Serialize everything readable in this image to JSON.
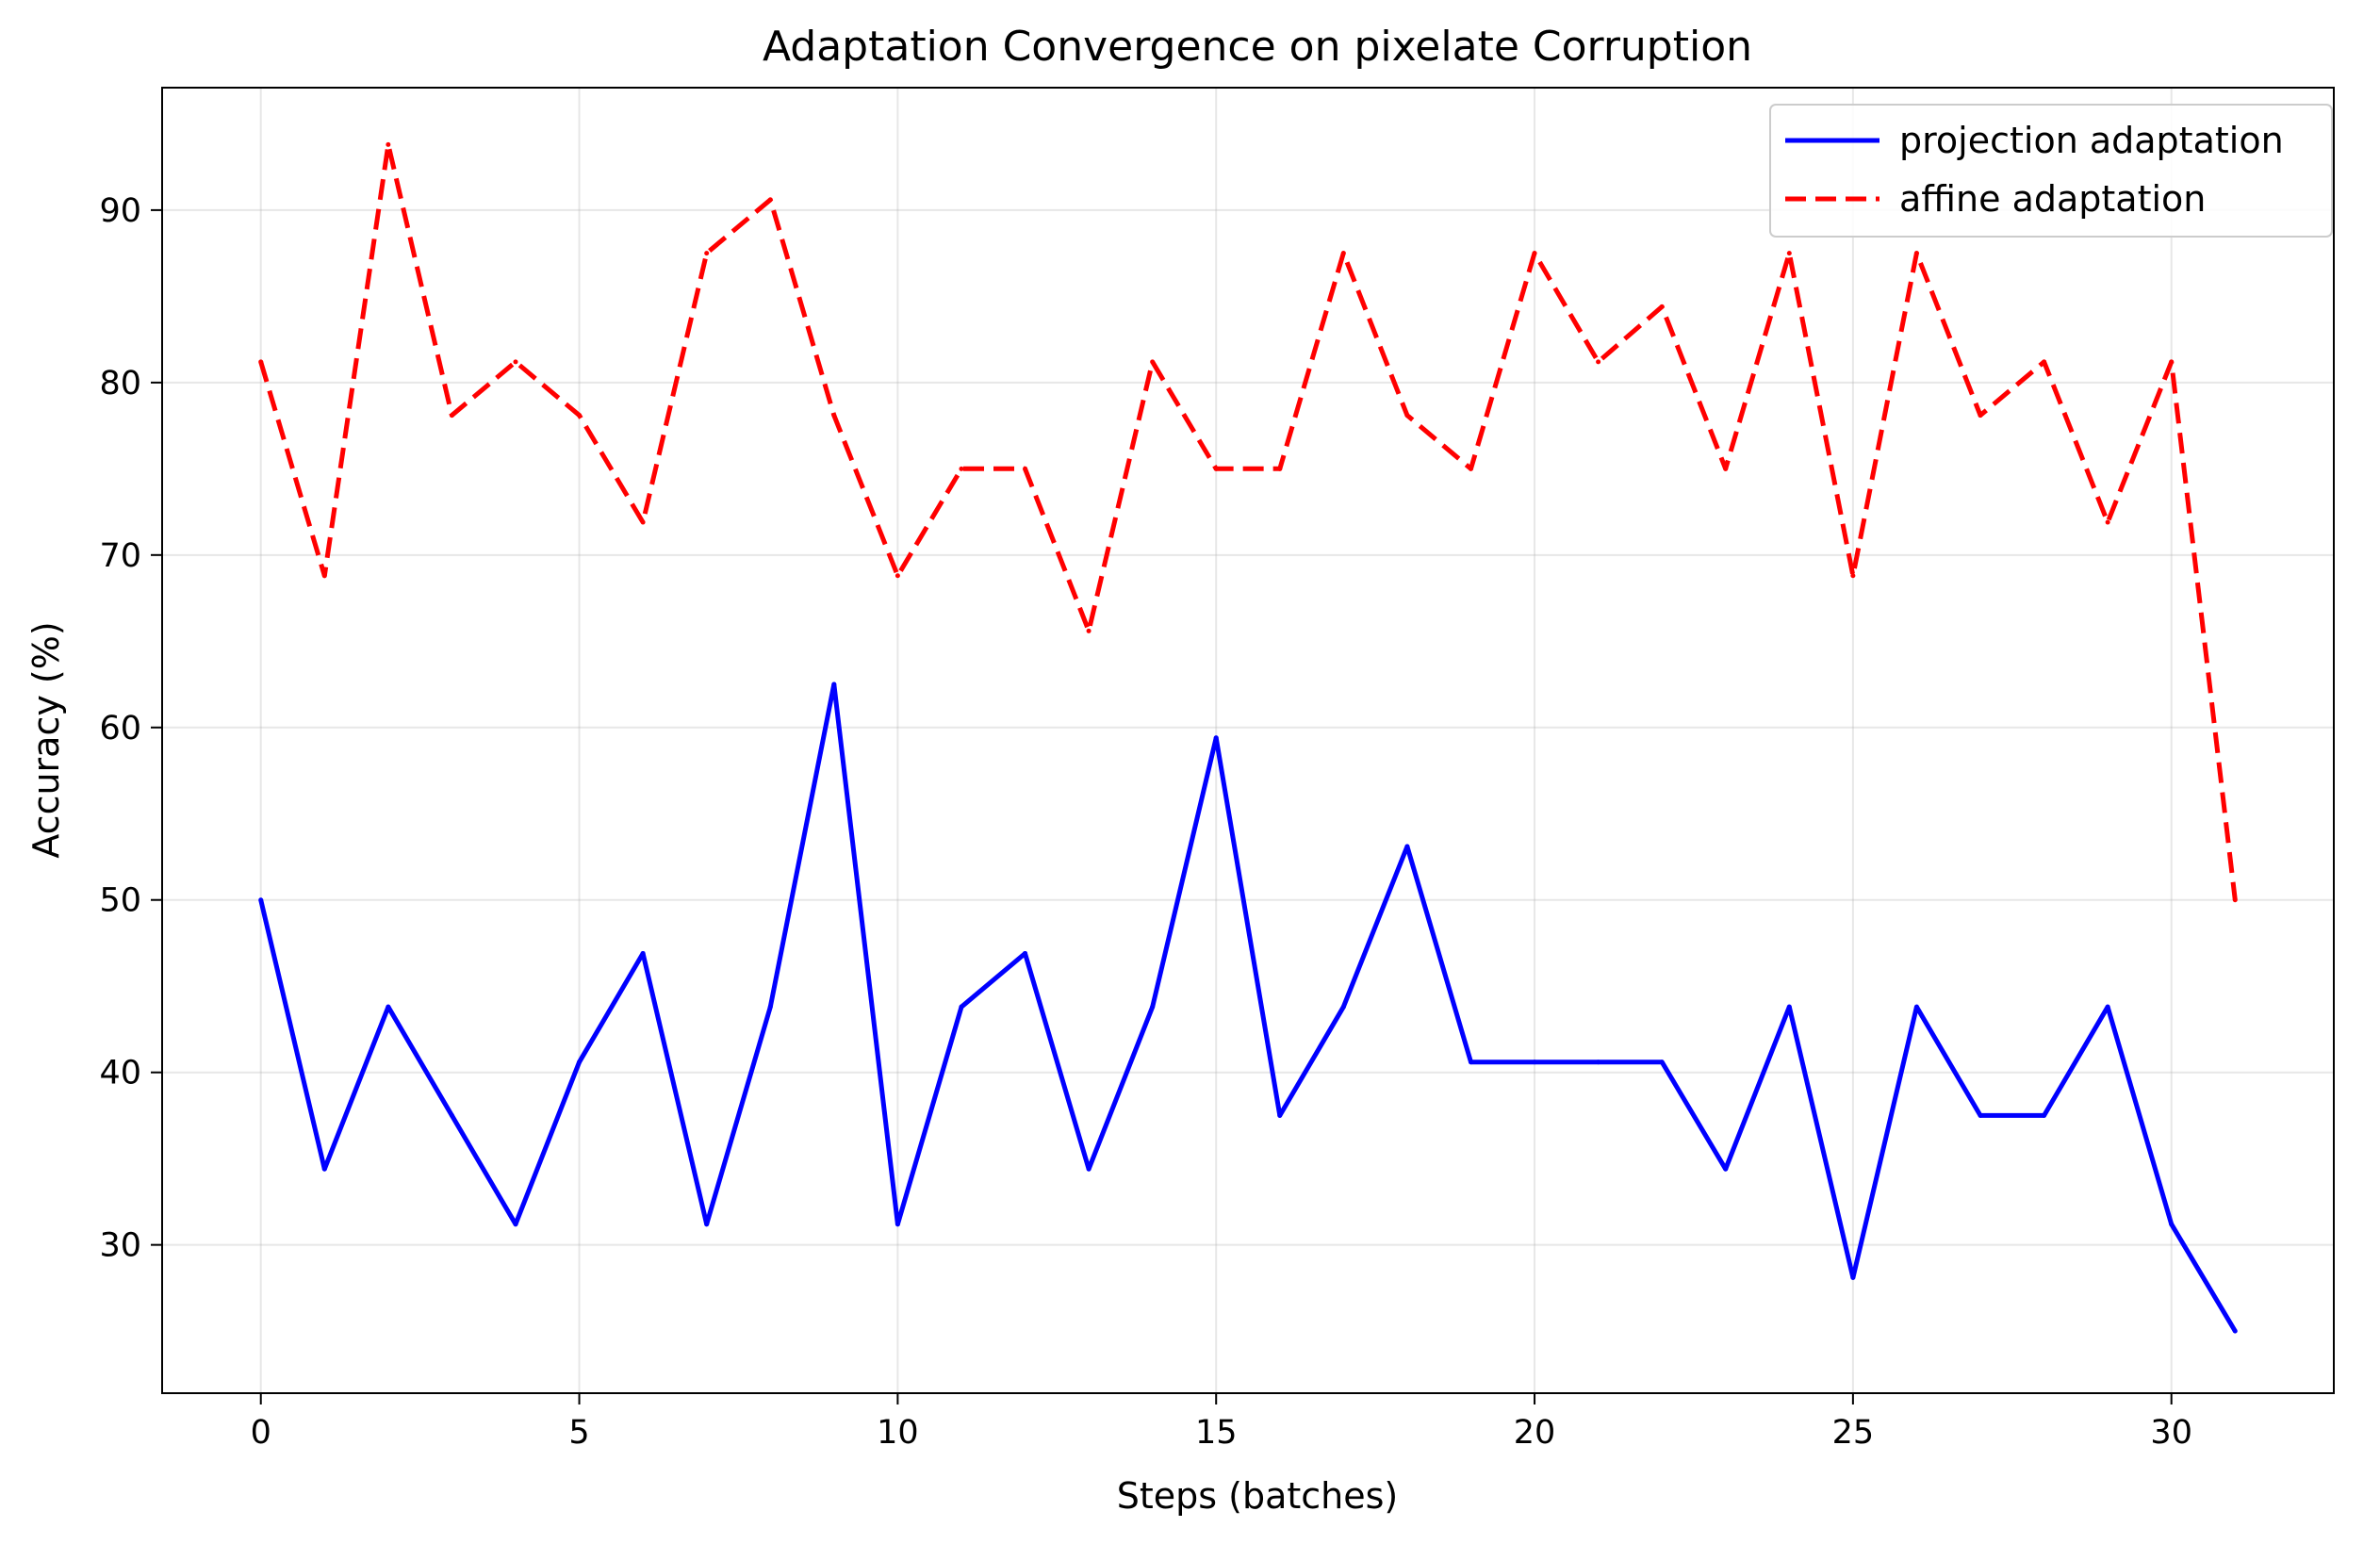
{
  "chart_data": {
    "type": "line",
    "title": "Adaptation Convergence on pixelate Corruption",
    "xlabel": "Steps (batches)",
    "ylabel": "Accuracy (%)",
    "xlim": [
      -1.55,
      32.55
    ],
    "ylim": [
      21.4,
      97.1
    ],
    "xticks": [
      0,
      5,
      10,
      15,
      20,
      25,
      30
    ],
    "yticks": [
      30,
      40,
      50,
      60,
      70,
      80,
      90
    ],
    "xtick_labels": [
      "0",
      "5",
      "10",
      "15",
      "20",
      "25",
      "30"
    ],
    "ytick_labels": [
      "30",
      "40",
      "50",
      "60",
      "70",
      "80",
      "90"
    ],
    "grid": true,
    "legend_position": "top-right",
    "x": [
      0,
      1,
      2,
      3,
      4,
      5,
      6,
      7,
      8,
      9,
      10,
      11,
      12,
      13,
      14,
      15,
      16,
      17,
      18,
      19,
      20,
      21,
      22,
      23,
      24,
      25,
      26,
      27,
      28,
      29,
      30,
      31
    ],
    "series": [
      {
        "name": "projection adaptation",
        "color": "#0000ff",
        "style": "solid",
        "values": [
          50.0,
          34.4,
          43.8,
          37.5,
          31.2,
          40.6,
          46.9,
          31.2,
          43.8,
          62.5,
          31.2,
          43.8,
          46.9,
          34.4,
          43.8,
          59.4,
          37.5,
          43.8,
          53.1,
          40.6,
          40.6,
          40.6,
          40.6,
          34.4,
          43.8,
          28.1,
          43.8,
          37.5,
          37.5,
          43.8,
          31.2,
          25.0
        ]
      },
      {
        "name": "affine adaptation",
        "color": "#ff0000",
        "style": "dashed",
        "values": [
          81.2,
          68.8,
          93.8,
          78.1,
          81.2,
          78.1,
          71.9,
          87.5,
          90.6,
          78.1,
          68.8,
          75.0,
          75.0,
          65.6,
          81.2,
          75.0,
          75.0,
          87.5,
          78.1,
          75.0,
          87.5,
          81.2,
          84.4,
          75.0,
          87.5,
          68.8,
          87.5,
          78.1,
          81.2,
          71.9,
          81.2,
          50.0
        ]
      }
    ]
  }
}
